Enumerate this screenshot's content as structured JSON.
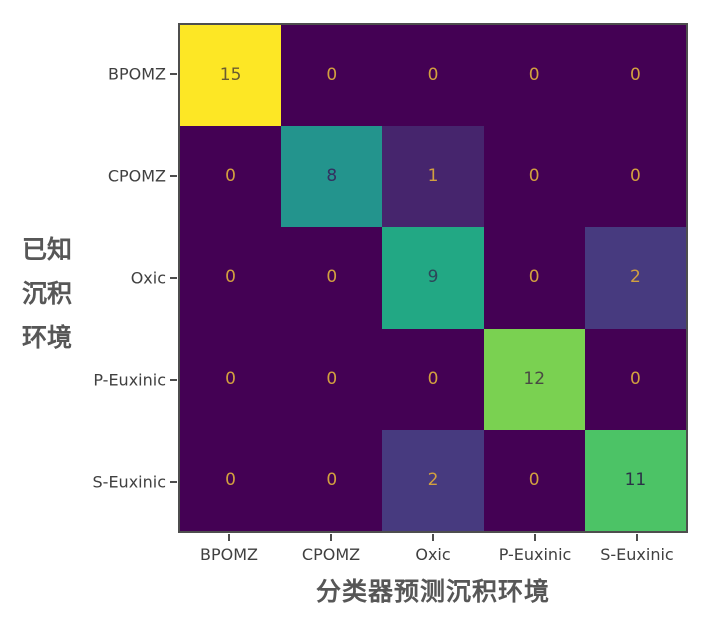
{
  "figure": {
    "ylabel_lines": [
      "已知",
      "沉积",
      "环境"
    ]
  },
  "chart_data": {
    "type": "heatmap",
    "subtype": "confusion-matrix",
    "title": "",
    "xlabel": "分类器预测沉积环境",
    "ylabel": "已知沉积环境",
    "colormap": "viridis",
    "vmin": 0,
    "vmax": 15,
    "categories_x": [
      "BPOMZ",
      "CPOMZ",
      "Oxic",
      "P-Euxinic",
      "S-Euxinic"
    ],
    "categories_y": [
      "BPOMZ",
      "CPOMZ",
      "Oxic",
      "P-Euxinic",
      "S-Euxinic"
    ],
    "matrix": [
      [
        15,
        0,
        0,
        0,
        0
      ],
      [
        0,
        8,
        1,
        0,
        0
      ],
      [
        0,
        0,
        9,
        0,
        2
      ],
      [
        0,
        0,
        0,
        12,
        0
      ],
      [
        0,
        0,
        2,
        0,
        11
      ]
    ],
    "cell_colors": [
      [
        "#fde725",
        "#440154",
        "#440154",
        "#440154",
        "#440154"
      ],
      [
        "#440154",
        "#23948d",
        "#46256d",
        "#440154",
        "#440154"
      ],
      [
        "#440154",
        "#440154",
        "#22a884",
        "#440154",
        "#473a7f"
      ],
      [
        "#440154",
        "#440154",
        "#440154",
        "#7ad151",
        "#440154"
      ],
      [
        "#440154",
        "#440154",
        "#473a7f",
        "#440154",
        "#4cc366"
      ]
    ],
    "text_colors": [
      [
        "#6a5c30",
        "#d2a03f",
        "#d2a03f",
        "#d2a03f",
        "#d2a03f"
      ],
      [
        "#d2a03f",
        "#333060",
        "#d2a03f",
        "#d2a03f",
        "#d2a03f"
      ],
      [
        "#d2a03f",
        "#d2a03f",
        "#2d4559",
        "#d2a03f",
        "#d2a03f"
      ],
      [
        "#d2a03f",
        "#d2a03f",
        "#d2a03f",
        "#494a43",
        "#d2a03f"
      ],
      [
        "#d2a03f",
        "#d2a03f",
        "#d2a03f",
        "#d2a03f",
        "#2b3147"
      ]
    ]
  },
  "colors": {
    "background": "#ffffff",
    "spine": "#4e4e4e",
    "tick_label": "#404040",
    "axis_label": "#575757",
    "value_gold": "#d2a03f",
    "cmap_min": "#440154",
    "cmap_max": "#fde725"
  }
}
